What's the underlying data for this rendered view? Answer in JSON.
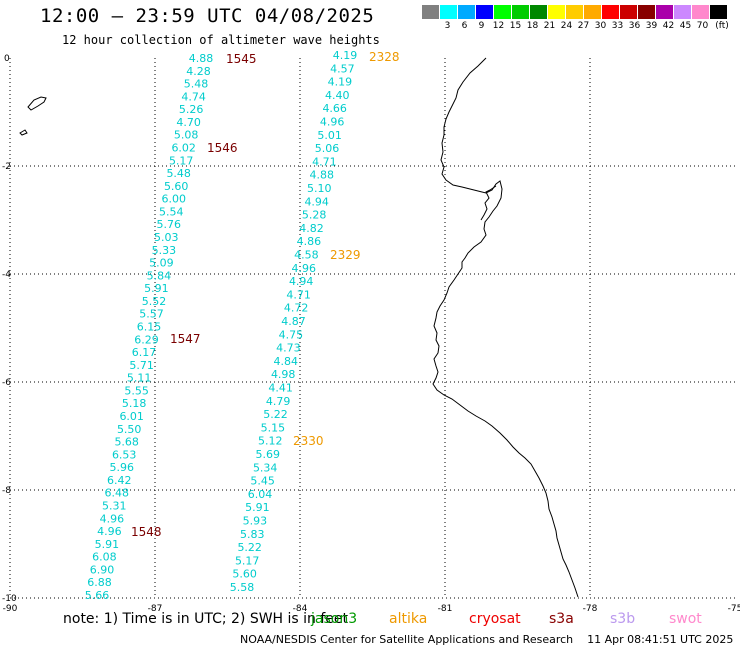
{
  "title": "12:00 — 23:59 UTC 04/08/2025",
  "subtitle": "12 hour collection of altimeter wave heights",
  "colors": {
    "coast": "#000000",
    "grid": "#000000",
    "value_text": "#00cccc",
    "pass_current": "#7a0000",
    "pass_other": "#ee9900"
  },
  "colorbar": {
    "swatches": [
      "#808080",
      "#00ffff",
      "#00aaff",
      "#0000ff",
      "#00ff00",
      "#00cc00",
      "#008800",
      "#ffff00",
      "#ffcc00",
      "#ffaa00",
      "#ff0000",
      "#cc0000",
      "#880000",
      "#aa00aa",
      "#cc88ff",
      "#ff88cc",
      "#000000"
    ],
    "labels": [
      "",
      "3",
      "6",
      "9",
      "12",
      "15",
      "18",
      "21",
      "24",
      "27",
      "30",
      "33",
      "36",
      "39",
      "42",
      "45",
      "70",
      "(ft)"
    ]
  },
  "map": {
    "lon_ticks": [
      "-90",
      "-87",
      "-84",
      "-81",
      "-78",
      "-75"
    ],
    "lat_ticks": [
      "0",
      "-2",
      "-4",
      "-6",
      "-8",
      "-10"
    ]
  },
  "passes": [
    {
      "label": "1545",
      "color": "#7a0000"
    },
    {
      "label": "1546",
      "color": "#7a0000"
    },
    {
      "label": "1547",
      "color": "#7a0000"
    },
    {
      "label": "1548",
      "color": "#7a0000"
    },
    {
      "label": "2328",
      "color": "#ee9900"
    },
    {
      "label": "2329",
      "color": "#ee9900"
    },
    {
      "label": "2330",
      "color": "#ee9900"
    }
  ],
  "track_west": [
    "4.88",
    "4.28",
    "5.48",
    "4.74",
    "5.26",
    "4.70",
    "5.08",
    "6.02",
    "5.17",
    "5.48",
    "5.60",
    "6.00",
    "5.54",
    "5.76",
    "5.03",
    "5.33",
    "5.09",
    "5.84",
    "5.91",
    "5.52",
    "5.57",
    "6.15",
    "6.29",
    "6.17",
    "5.71",
    "5.11",
    "5.55",
    "5.18",
    "6.01",
    "5.50",
    "5.68",
    "6.53",
    "5.96",
    "6.42",
    "6.48",
    "5.31",
    "4.96",
    "4.96",
    "5.91",
    "6.08",
    "6.90",
    "6.88",
    "5.66"
  ],
  "track_east": [
    "4.19",
    "4.57",
    "4.19",
    "4.40",
    "4.66",
    "4.96",
    "5.01",
    "5.06",
    "4.71",
    "4.88",
    "5.10",
    "4.94",
    "5.28",
    "4.82",
    "4.86",
    "4.58",
    "4.96",
    "4.94",
    "4.71",
    "4.72",
    "4.87",
    "4.75",
    "4.73",
    "4.84",
    "4.98",
    "4.41",
    "4.79",
    "5.22",
    "5.15",
    "5.12",
    "5.69",
    "5.34",
    "5.45",
    "6.04",
    "5.91",
    "5.93",
    "5.83",
    "5.22",
    "5.17",
    "5.60",
    "5.58"
  ],
  "footer": {
    "note": "note: 1) Time is in UTC; 2) SWH is in feet",
    "satellites": [
      {
        "name": "jason3",
        "color": "#009900"
      },
      {
        "name": "altika",
        "color": "#ee9900"
      },
      {
        "name": "cryosat",
        "color": "#ee0000"
      },
      {
        "name": "s3a",
        "color": "#880000"
      },
      {
        "name": "s3b",
        "color": "#bb99ee"
      },
      {
        "name": "swot",
        "color": "#ff88cc"
      }
    ],
    "credit": "NOAA/NESDIS Center for Satellite Applications and Research",
    "timestamp": "11 Apr 08:41:51 UTC 2025"
  }
}
